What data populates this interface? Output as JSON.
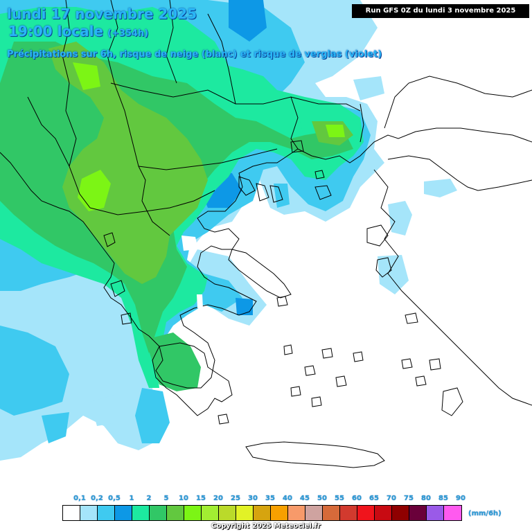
{
  "header": {
    "date_line": "lundi 17 novembre 2025",
    "time_line": "19:00 locale",
    "lead_time": "(+354h)",
    "subtitle": "Précipitations sur 6h, risque de neige (blanc) et risque de verglas (violet)",
    "run_info": "Run GFS 0Z du lundi 3 novembre 2025"
  },
  "legend": {
    "unit": "(mm/6h)",
    "ticks": [
      "0,1",
      "0,2",
      "0,5",
      "1",
      "2",
      "5",
      "10",
      "15",
      "20",
      "25",
      "30",
      "35",
      "40",
      "45",
      "50",
      "55",
      "60",
      "65",
      "70",
      "75",
      "80",
      "85",
      "90"
    ],
    "colors": [
      "#ffffff",
      "#a5e5fa",
      "#3fcaf0",
      "#0d98e6",
      "#1de9a0",
      "#31c766",
      "#62c83f",
      "#7cf515",
      "#a2ee32",
      "#bada2a",
      "#e2f226",
      "#d6a40f",
      "#f7a000",
      "#f79a6a",
      "#cfa3a0",
      "#d66a3a",
      "#d23a2e",
      "#f0141c",
      "#c80a12",
      "#8f0000",
      "#6a003a",
      "#9a5ae8",
      "#ff5aef"
    ]
  },
  "colors": {
    "sea_white": "#ffffff",
    "light_blue": "#a5e5fa",
    "mid_blue": "#3fcaf0",
    "deep_blue": "#0d98e6",
    "teal": "#1de9a0",
    "green": "#31c766",
    "dark_green": "#62c83f",
    "lime": "#7cf515",
    "border": "#000000"
  },
  "footer": {
    "copyright": "Copyright 2025 Meteociel.fr"
  }
}
